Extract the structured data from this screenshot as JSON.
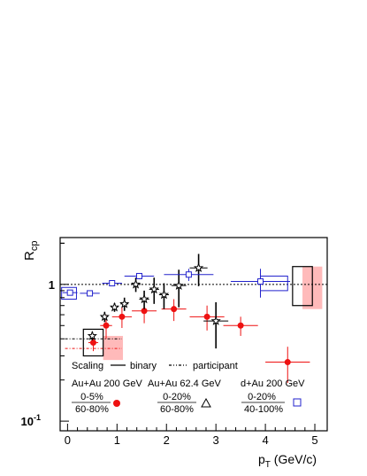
{
  "chart_data": {
    "type": "scatter",
    "ylabel": {
      "main": "R",
      "sub": "cp"
    },
    "xlabel": {
      "main": "p",
      "sub": "T",
      "rest": " (GeV/c)"
    },
    "xlim": [
      -0.15,
      5.25
    ],
    "ylim": [
      0.085,
      2.2
    ],
    "yscale": "log",
    "x_ticks": [
      "0",
      "1",
      "2",
      "3",
      "4",
      "5"
    ],
    "y_ticks": [
      {
        "value": 0.1,
        "base": "10",
        "exp": "-1"
      },
      {
        "value": 1,
        "label": "1"
      }
    ],
    "scaling_legend": {
      "title": "Scaling",
      "binary": "binary",
      "participant": "participant"
    },
    "reference_lines": {
      "binary_y": 1.0,
      "participant_y": 0.4,
      "participant_x": [
        -0.05,
        1.1
      ]
    },
    "series": [
      {
        "name": "Au+Au 200 GeV",
        "centrality_num": "0-5%",
        "centrality_den": "60-80%",
        "marker": "filled-circle",
        "color": "#ee1111",
        "points": [
          {
            "x": 0.52,
            "y": 0.375,
            "xerr": 0.1,
            "yerr": 0.05
          },
          {
            "x": 0.78,
            "y": 0.5,
            "xerr": 0.12,
            "yerr": 0.1
          },
          {
            "x": 1.1,
            "y": 0.58,
            "xerr": 0.2,
            "yerr": 0.1
          },
          {
            "x": 1.55,
            "y": 0.64,
            "xerr": 0.25,
            "yerr": 0.12
          },
          {
            "x": 2.15,
            "y": 0.66,
            "xerr": 0.25,
            "yerr": 0.12
          },
          {
            "x": 2.82,
            "y": 0.58,
            "xerr": 0.35,
            "yerr": 0.12
          },
          {
            "x": 3.5,
            "y": 0.5,
            "xerr": 0.35,
            "yerr": 0.08
          },
          {
            "x": 4.45,
            "y": 0.27,
            "xerr": 0.45,
            "yerr": 0.08
          }
        ]
      },
      {
        "name": "Au+Au 62.4 GeV",
        "centrality_num": "0-20%",
        "centrality_den": "60-80%",
        "marker": "open-star",
        "color": "#000000",
        "points": [
          {
            "x": 0.5,
            "y": 0.42,
            "xerr": 0.06,
            "yerr": 0.03
          },
          {
            "x": 0.75,
            "y": 0.58,
            "xerr": 0.07,
            "yerr": 0.05
          },
          {
            "x": 0.95,
            "y": 0.68,
            "xerr": 0.07,
            "yerr": 0.05
          },
          {
            "x": 1.15,
            "y": 0.72,
            "xerr": 0.08,
            "yerr": 0.08
          },
          {
            "x": 1.38,
            "y": 1.0,
            "xerr": 0.1,
            "yerr": 0.12
          },
          {
            "x": 1.55,
            "y": 0.78,
            "xerr": 0.1,
            "yerr": 0.12
          },
          {
            "x": 1.75,
            "y": 0.92,
            "xerr": 0.1,
            "yerr": 0.2
          },
          {
            "x": 1.95,
            "y": 0.84,
            "xerr": 0.1,
            "yerr": 0.18
          },
          {
            "x": 2.25,
            "y": 0.98,
            "xerr": 0.15,
            "yerr": 0.3
          },
          {
            "x": 2.65,
            "y": 1.32,
            "xerr": 0.18,
            "yerr": 0.35
          },
          {
            "x": 3.0,
            "y": 0.54,
            "xerr": 0.25,
            "yerr": 0.2
          }
        ]
      },
      {
        "name": "d+Au 200 GeV",
        "centrality_num": "0-20%",
        "centrality_den": "40-100%",
        "marker": "open-square",
        "color": "#2222cc",
        "points": [
          {
            "x": 0.05,
            "y": 0.87,
            "xerr": 0.15,
            "yerr": 0.0
          },
          {
            "x": 0.45,
            "y": 0.86,
            "xerr": 0.2,
            "yerr": 0.0
          },
          {
            "x": 0.9,
            "y": 1.02,
            "xerr": 0.2,
            "yerr": 0.03
          },
          {
            "x": 1.45,
            "y": 1.15,
            "xerr": 0.3,
            "yerr": 0.06
          },
          {
            "x": 2.45,
            "y": 1.18,
            "xerr": 0.5,
            "yerr": 0.12
          },
          {
            "x": 3.9,
            "y": 1.05,
            "xerr": 0.6,
            "yerr": 0.25
          }
        ]
      }
    ]
  }
}
